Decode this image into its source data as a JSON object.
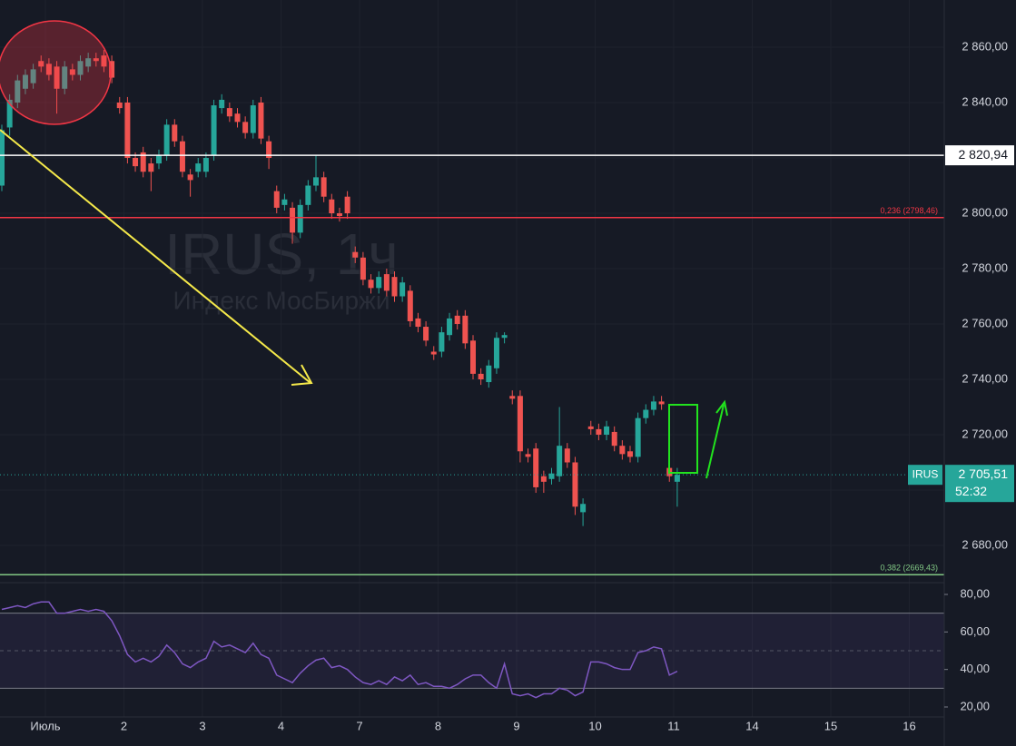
{
  "chart_data": {
    "type": "candlestick",
    "title": "IRUS, 1ч",
    "subtitle": "Индекс МосБиржи",
    "open": [
      2810,
      2831,
      2840,
      2845,
      2847,
      2855,
      2854,
      2853,
      2845,
      2852,
      2850,
      2853,
      2856,
      2857,
      2855,
      2840,
      2840,
      2820,
      2822,
      2818,
      2818,
      2821,
      2832,
      2826,
      2814,
      2815,
      2815,
      2821,
      2838,
      2838,
      2836,
      2833,
      2829,
      2840,
      2826,
      2808,
      2803,
      2802,
      2793,
      2803,
      2810,
      2813,
      2805,
      2800,
      2806,
      2786,
      2784,
      2776,
      2773,
      2778,
      2777,
      2770,
      2772,
      2762,
      2759,
      2750,
      2750,
      2756,
      2763,
      2763,
      2754,
      2742,
      2739,
      2744,
      2755,
      2734,
      2734,
      2713,
      2715,
      2705,
      2704,
      2705,
      2715,
      2710,
      2692,
      2723,
      2722,
      2720,
      2721,
      2716,
      2714,
      2712,
      2726,
      2729,
      2732,
      2708,
      2703
    ],
    "high": [
      2832,
      2843,
      2850,
      2852,
      2854,
      2857,
      2856,
      2855,
      2855,
      2854,
      2857,
      2858,
      2858,
      2859,
      2857,
      2842,
      2842,
      2822,
      2824,
      2820,
      2823,
      2834,
      2834,
      2828,
      2816,
      2820,
      2822,
      2841,
      2843,
      2840,
      2838,
      2835,
      2841,
      2842,
      2828,
      2810,
      2807,
      2804,
      2805,
      2812,
      2821,
      2815,
      2807,
      2802,
      2808,
      2788,
      2786,
      2778,
      2779,
      2780,
      2779,
      2777,
      2774,
      2764,
      2761,
      2752,
      2759,
      2764,
      2765,
      2765,
      2756,
      2744,
      2747,
      2757,
      2757,
      2736,
      2736,
      2715,
      2717,
      2707,
      2708,
      2730,
      2717,
      2712,
      2697,
      2725,
      2724,
      2725,
      2723,
      2718,
      2716,
      2728,
      2731,
      2734,
      2734,
      2710,
      2708
    ],
    "low": [
      2808,
      2828,
      2838,
      2843,
      2845,
      2851,
      2848,
      2836,
      2843,
      2848,
      2848,
      2851,
      2853,
      2851,
      2847,
      2836,
      2818,
      2815,
      2813,
      2808,
      2816,
      2819,
      2824,
      2813,
      2806,
      2813,
      2813,
      2819,
      2836,
      2833,
      2831,
      2827,
      2827,
      2825,
      2816,
      2800,
      2801,
      2789,
      2791,
      2801,
      2808,
      2804,
      2798,
      2797,
      2798,
      2782,
      2774,
      2771,
      2771,
      2770,
      2768,
      2768,
      2759,
      2757,
      2752,
      2747,
      2748,
      2754,
      2758,
      2751,
      2740,
      2738,
      2737,
      2742,
      2753,
      2731,
      2710,
      2710,
      2699,
      2699,
      2702,
      2703,
      2708,
      2691,
      2687,
      2720,
      2718,
      2718,
      2714,
      2711,
      2710,
      2710,
      2724,
      2727,
      2729,
      2703,
      2694
    ],
    "close": [
      2830,
      2841,
      2848,
      2850,
      2852,
      2853,
      2850,
      2845,
      2853,
      2850,
      2855,
      2856,
      2855,
      2853,
      2849,
      2838,
      2820,
      2817,
      2815,
      2815,
      2821,
      2832,
      2826,
      2815,
      2812,
      2818,
      2820,
      2839,
      2841,
      2835,
      2833,
      2829,
      2839,
      2827,
      2820,
      2802,
      2805,
      2793,
      2803,
      2810,
      2813,
      2806,
      2800,
      2799,
      2800,
      2784,
      2776,
      2773,
      2777,
      2772,
      2770,
      2775,
      2761,
      2759,
      2754,
      2749,
      2757,
      2762,
      2760,
      2753,
      2742,
      2740,
      2745,
      2755,
      2756,
      2733,
      2714,
      2712,
      2701,
      2703,
      2706,
      2716,
      2710,
      2694,
      2695,
      2722,
      2720,
      2723,
      2716,
      2713,
      2712,
      2726,
      2729,
      2732,
      2731,
      2705,
      2705.51
    ],
    "up_color": "#26a69a",
    "down_color": "#ef5350",
    "ylim": [
      2667.21,
      2877.05
    ],
    "yticks": [
      {
        "value": 2680,
        "label": "2 680,00"
      },
      {
        "value": 2700,
        "label": "2 700,00"
      },
      {
        "value": 2720,
        "label": "2 720,00"
      },
      {
        "value": 2740,
        "label": "2 740,00"
      },
      {
        "value": 2760,
        "label": "2 760,00"
      },
      {
        "value": 2780,
        "label": "2 780,00"
      },
      {
        "value": 2800,
        "label": "2 800,00"
      },
      {
        "value": 2820,
        "label": "2 820,00"
      },
      {
        "value": 2840,
        "label": "2 840,00"
      },
      {
        "value": 2860,
        "label": "2 860,00"
      }
    ],
    "x_labels": [
      "Июль",
      "2",
      "3",
      "4",
      "7",
      "8",
      "9",
      "10",
      "11",
      "14",
      "15",
      "16"
    ],
    "levels": [
      {
        "label": "0,236 (2798,46)",
        "value": 2798.46,
        "color": "#f23645"
      },
      {
        "label": "0,382 (2669,43)",
        "value": 2669.43,
        "color": "#81c784"
      }
    ],
    "price_line": {
      "value": 2820.94,
      "label": "2 820,94"
    },
    "symbol": "IRUS",
    "last": {
      "value": 2705.51,
      "label": "2 705,51"
    },
    "countdown": "52:32",
    "rsi": {
      "color": "#7e57c2",
      "values": [
        72,
        73,
        74,
        73,
        75,
        76,
        76,
        70,
        70,
        71,
        72,
        71,
        72,
        71,
        66,
        58,
        48,
        44,
        46,
        44,
        47,
        53,
        49,
        43,
        41,
        44,
        46,
        55,
        52,
        53,
        51,
        49,
        54,
        48,
        46,
        37,
        35,
        33,
        38,
        42,
        45,
        46,
        41,
        42,
        40,
        36,
        33,
        32,
        34,
        32,
        36,
        34,
        37,
        32,
        33,
        31,
        31,
        30,
        32,
        35,
        37,
        37,
        33,
        30,
        43,
        27,
        26,
        27,
        25,
        27,
        27,
        30,
        29,
        26,
        28,
        44,
        44,
        43,
        41,
        40,
        40,
        49,
        50,
        52,
        51,
        37,
        39
      ],
      "ylim": [
        14.68,
        84.84
      ],
      "bands": [
        30,
        70
      ],
      "mid": 50,
      "yticks": [
        {
          "value": 20,
          "label": "20,00"
        },
        {
          "value": 40,
          "label": "40,00"
        },
        {
          "value": 60,
          "label": "60,00"
        },
        {
          "value": 80,
          "label": "80,00"
        }
      ]
    }
  }
}
